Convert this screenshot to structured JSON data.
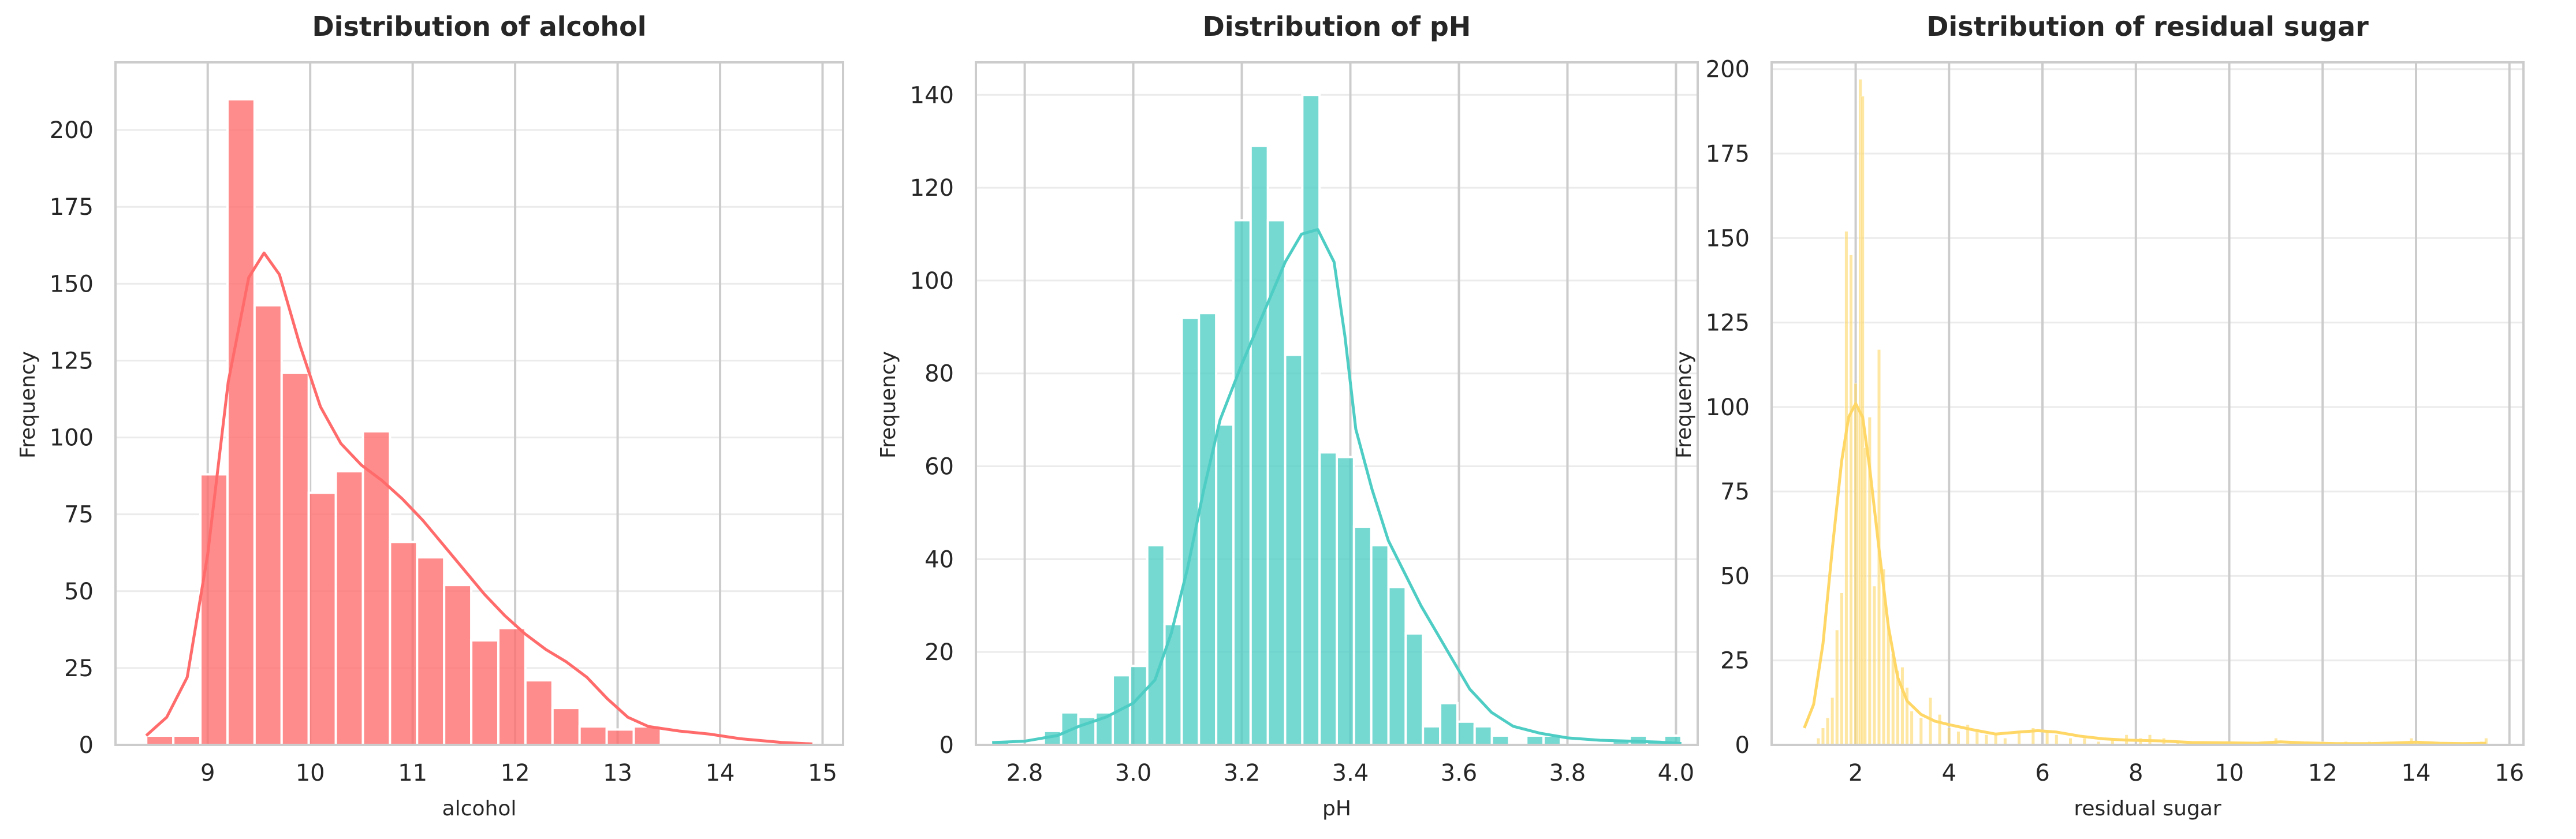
{
  "chart_data": [
    {
      "type": "bar",
      "title": "Distribution of alcohol",
      "xlabel": "alcohol",
      "ylabel": "Frequency",
      "color": "#ff6b6b",
      "xlim": [
        8.1,
        15.2
      ],
      "ylim": [
        0,
        222
      ],
      "xticks": [
        9,
        10,
        11,
        12,
        13,
        14,
        15
      ],
      "yticks": [
        0,
        25,
        50,
        75,
        100,
        125,
        150,
        175,
        200
      ],
      "bin_start": 8.4,
      "bin_width": 0.2643,
      "values": [
        3,
        3,
        88,
        210,
        143,
        121,
        82,
        89,
        102,
        66,
        61,
        52,
        34,
        38,
        21,
        12,
        6,
        5,
        6
      ],
      "kde": [
        [
          8.4,
          3
        ],
        [
          8.6,
          9
        ],
        [
          8.8,
          22
        ],
        [
          9.0,
          62
        ],
        [
          9.2,
          118
        ],
        [
          9.4,
          152
        ],
        [
          9.55,
          160
        ],
        [
          9.7,
          153
        ],
        [
          9.9,
          130
        ],
        [
          10.1,
          110
        ],
        [
          10.3,
          98
        ],
        [
          10.5,
          91
        ],
        [
          10.7,
          86
        ],
        [
          10.9,
          80
        ],
        [
          11.1,
          73
        ],
        [
          11.3,
          65
        ],
        [
          11.5,
          57
        ],
        [
          11.7,
          49
        ],
        [
          11.9,
          42
        ],
        [
          12.1,
          36
        ],
        [
          12.3,
          31
        ],
        [
          12.5,
          27
        ],
        [
          12.7,
          22
        ],
        [
          12.9,
          15
        ],
        [
          13.1,
          9
        ],
        [
          13.3,
          6
        ],
        [
          13.6,
          4.5
        ],
        [
          13.9,
          3.5
        ],
        [
          14.2,
          2
        ],
        [
          14.6,
          0.8
        ],
        [
          14.9,
          0.3
        ]
      ]
    },
    {
      "type": "bar",
      "title": "Distribution of pH",
      "xlabel": "pH",
      "ylabel": "Frequency",
      "color": "#4ecdc4",
      "xlim": [
        2.71,
        4.04
      ],
      "ylim": [
        0,
        147
      ],
      "xticks": [
        2.8,
        3.0,
        3.2,
        3.4,
        3.6,
        3.8,
        4.0
      ],
      "yticks": [
        0,
        20,
        40,
        60,
        80,
        100,
        120,
        140
      ],
      "bin_start": 2.74,
      "bin_width": 0.03175,
      "values": [
        1,
        0,
        0,
        3,
        7,
        6,
        7,
        15,
        17,
        43,
        26,
        92,
        93,
        69,
        113,
        129,
        113,
        84,
        140,
        63,
        62,
        47,
        43,
        34,
        24,
        4,
        9,
        5,
        4,
        2,
        0,
        2,
        2,
        0,
        0,
        0,
        1,
        2,
        1,
        2
      ],
      "kde": [
        [
          2.74,
          0.5
        ],
        [
          2.8,
          0.8
        ],
        [
          2.86,
          2
        ],
        [
          2.9,
          4
        ],
        [
          2.95,
          6
        ],
        [
          3.0,
          9
        ],
        [
          3.04,
          14
        ],
        [
          3.07,
          24
        ],
        [
          3.1,
          38
        ],
        [
          3.13,
          55
        ],
        [
          3.16,
          70
        ],
        [
          3.2,
          82
        ],
        [
          3.24,
          93
        ],
        [
          3.28,
          104
        ],
        [
          3.31,
          110
        ],
        [
          3.34,
          111
        ],
        [
          3.37,
          104
        ],
        [
          3.39,
          88
        ],
        [
          3.41,
          68
        ],
        [
          3.44,
          55
        ],
        [
          3.47,
          44
        ],
        [
          3.5,
          37
        ],
        [
          3.53,
          30
        ],
        [
          3.56,
          24
        ],
        [
          3.59,
          18
        ],
        [
          3.62,
          12
        ],
        [
          3.66,
          7
        ],
        [
          3.7,
          4
        ],
        [
          3.75,
          2.5
        ],
        [
          3.8,
          1.5
        ],
        [
          3.86,
          1
        ],
        [
          3.92,
          0.8
        ],
        [
          3.97,
          0.6
        ],
        [
          4.01,
          0.3
        ]
      ]
    },
    {
      "type": "bar",
      "title": "Distribution of residual sugar",
      "xlabel": "residual sugar",
      "ylabel": "Frequency",
      "color": "#fed766",
      "xlim": [
        0.2,
        16.3
      ],
      "ylim": [
        0,
        202
      ],
      "xticks": [
        2,
        4,
        6,
        8,
        10,
        12,
        14,
        16
      ],
      "yticks": [
        0,
        25,
        50,
        75,
        100,
        125,
        150,
        175,
        200
      ],
      "values_xy": [
        [
          1.2,
          2
        ],
        [
          1.3,
          5
        ],
        [
          1.4,
          8
        ],
        [
          1.5,
          14
        ],
        [
          1.6,
          34
        ],
        [
          1.7,
          45
        ],
        [
          1.8,
          152
        ],
        [
          1.9,
          145
        ],
        [
          2.0,
          107
        ],
        [
          2.05,
          100
        ],
        [
          2.1,
          197
        ],
        [
          2.15,
          192
        ],
        [
          2.2,
          88
        ],
        [
          2.3,
          97
        ],
        [
          2.4,
          47
        ],
        [
          2.5,
          117
        ],
        [
          2.6,
          52
        ],
        [
          2.7,
          35
        ],
        [
          2.8,
          27
        ],
        [
          2.9,
          22
        ],
        [
          3.0,
          23
        ],
        [
          3.1,
          17
        ],
        [
          3.2,
          10
        ],
        [
          3.4,
          8
        ],
        [
          3.6,
          14
        ],
        [
          3.8,
          9
        ],
        [
          4.0,
          5
        ],
        [
          4.2,
          4
        ],
        [
          4.4,
          6
        ],
        [
          4.6,
          4
        ],
        [
          4.8,
          3
        ],
        [
          5.0,
          3
        ],
        [
          5.2,
          2
        ],
        [
          5.5,
          4
        ],
        [
          5.8,
          5
        ],
        [
          6.1,
          4
        ],
        [
          6.3,
          3
        ],
        [
          6.6,
          2
        ],
        [
          6.9,
          2
        ],
        [
          7.2,
          1
        ],
        [
          7.5,
          2
        ],
        [
          7.8,
          3
        ],
        [
          8.1,
          2
        ],
        [
          8.3,
          3
        ],
        [
          8.6,
          2
        ],
        [
          8.9,
          1
        ],
        [
          9.3,
          1
        ],
        [
          9.7,
          1
        ],
        [
          10.1,
          1
        ],
        [
          10.7,
          1
        ],
        [
          11.0,
          2
        ],
        [
          11.4,
          1
        ],
        [
          12.0,
          1
        ],
        [
          12.5,
          1
        ],
        [
          13.0,
          1
        ],
        [
          13.6,
          1
        ],
        [
          13.9,
          2
        ],
        [
          14.2,
          1
        ],
        [
          15.4,
          1
        ],
        [
          15.5,
          2
        ]
      ],
      "kde": [
        [
          0.9,
          5
        ],
        [
          1.1,
          12
        ],
        [
          1.3,
          30
        ],
        [
          1.5,
          58
        ],
        [
          1.7,
          84
        ],
        [
          1.85,
          97
        ],
        [
          2.0,
          101
        ],
        [
          2.15,
          97
        ],
        [
          2.3,
          82
        ],
        [
          2.5,
          58
        ],
        [
          2.7,
          35
        ],
        [
          2.9,
          20
        ],
        [
          3.1,
          13
        ],
        [
          3.4,
          9
        ],
        [
          3.7,
          7
        ],
        [
          4.0,
          6
        ],
        [
          4.5,
          4.5
        ],
        [
          5.0,
          3.2
        ],
        [
          5.5,
          3.8
        ],
        [
          5.9,
          4.2
        ],
        [
          6.3,
          3.8
        ],
        [
          6.8,
          2.6
        ],
        [
          7.3,
          1.8
        ],
        [
          7.8,
          1.4
        ],
        [
          8.5,
          1.2
        ],
        [
          9.2,
          0.7
        ],
        [
          10.0,
          0.6
        ],
        [
          10.6,
          0.5
        ],
        [
          11.1,
          0.9
        ],
        [
          11.6,
          0.6
        ],
        [
          12.3,
          0.4
        ],
        [
          13.0,
          0.4
        ],
        [
          13.6,
          0.6
        ],
        [
          14.0,
          0.8
        ],
        [
          14.5,
          0.5
        ],
        [
          15.0,
          0.4
        ],
        [
          15.5,
          0.5
        ]
      ]
    }
  ]
}
